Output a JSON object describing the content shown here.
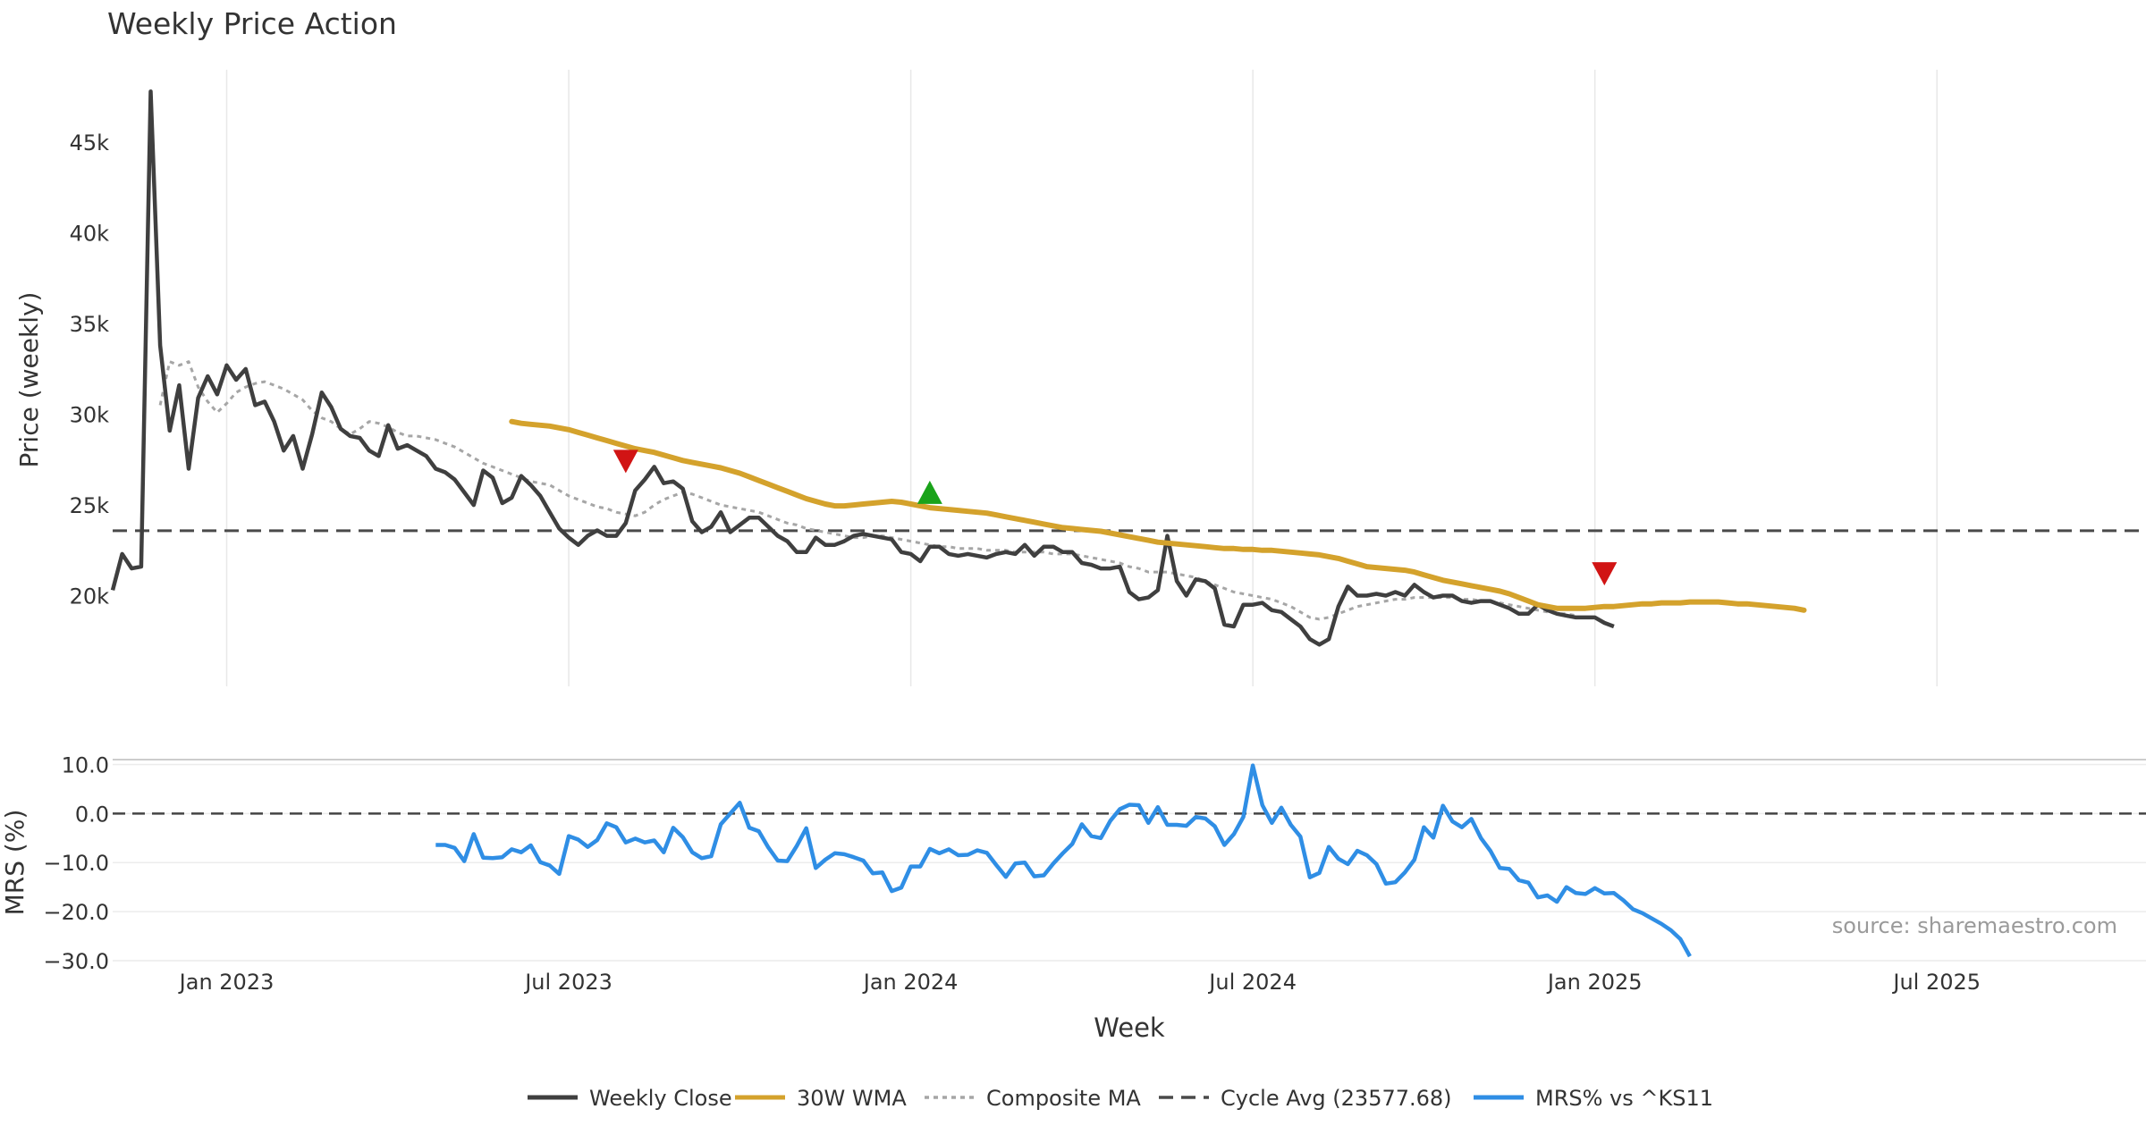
{
  "chart_data": {
    "type": "line",
    "title": "Weekly Price Action",
    "source_note": "source: sharemaestro.com",
    "x_axis_label": "Week",
    "x_ticks": [
      "Jan 2023",
      "Jul 2023",
      "Jan 2024",
      "Jul 2024",
      "Jan 2025",
      "Jul 2025"
    ],
    "x_tick_weeks": [
      12,
      48,
      84,
      120,
      156,
      192
    ],
    "x_range_weeks": [
      0,
      214
    ],
    "colors": {
      "close": "#3f3f3f",
      "wma": "#d4a22c",
      "composite": "#a6a6a6",
      "cycle": "#4a4a4a",
      "mrs": "#2f8ee5",
      "signal_down": "#d11414",
      "signal_up": "#1aa31a",
      "grid": "#e8e8e8",
      "text": "#333333"
    },
    "price_panel": {
      "ylabel": "Price (weekly)",
      "yrange": [
        15000,
        49000
      ],
      "yticks": [
        20000,
        25000,
        30000,
        35000,
        40000,
        45000
      ],
      "ytick_labels": [
        "20k",
        "25k",
        "30k",
        "35k",
        "40k",
        "45k"
      ],
      "cycle_avg": 23577.68,
      "series": {
        "weekly_close": {
          "name": "Weekly Close",
          "start_week": 0,
          "values": [
            20300,
            22300,
            21500,
            21600,
            47800,
            33800,
            29100,
            31600,
            27000,
            30900,
            32100,
            31100,
            32700,
            31900,
            32500,
            30500,
            30700,
            29600,
            28000,
            28800,
            27000,
            28900,
            31200,
            30400,
            29200,
            28800,
            28700,
            28000,
            27700,
            29400,
            28100,
            28300,
            28000,
            27700,
            27000,
            26800,
            26400,
            25700,
            25000,
            26900,
            26500,
            25100,
            25400,
            26600,
            26100,
            25500,
            24600,
            23700,
            23200,
            22800,
            23300,
            23600,
            23300,
            23300,
            24000,
            25800,
            26400,
            27100,
            26200,
            26300,
            25900,
            24100,
            23500,
            23800,
            24600,
            23500,
            23900,
            24300,
            24300,
            23800,
            23300,
            23000,
            22400,
            22400,
            23200,
            22800,
            22800,
            23000,
            23300,
            23400,
            23300,
            23200,
            23100,
            22400,
            22300,
            21900,
            22700,
            22700,
            22300,
            22200,
            22300,
            22200,
            22100,
            22300,
            22400,
            22300,
            22800,
            22200,
            22700,
            22700,
            22400,
            22400,
            21800,
            21700,
            21500,
            21500,
            21600,
            20200,
            19800,
            19900,
            20300,
            23300,
            20800,
            20000,
            20900,
            20800,
            20400,
            18400,
            18300,
            19500,
            19500,
            19600,
            19200,
            19100,
            18700,
            18300,
            17600,
            17300,
            17600,
            19400,
            20500,
            20000,
            20000,
            20100,
            20000,
            20200,
            20000,
            20600,
            20200,
            19900,
            20000,
            20000,
            19700,
            19600,
            19700,
            19700,
            19500,
            19300,
            19000,
            19000,
            19500,
            19200,
            19000,
            18900,
            18800,
            18800,
            18800,
            18500,
            18300
          ]
        },
        "wma_30w": {
          "name": "30W WMA",
          "start_week": 42,
          "values": [
            29600,
            29500,
            29450,
            29400,
            29350,
            29250,
            29150,
            29000,
            28850,
            28700,
            28550,
            28400,
            28250,
            28100,
            28000,
            27900,
            27750,
            27600,
            27450,
            27350,
            27250,
            27150,
            27050,
            26900,
            26750,
            26550,
            26350,
            26150,
            25950,
            25750,
            25550,
            25350,
            25200,
            25050,
            24950,
            24950,
            25000,
            25050,
            25100,
            25150,
            25200,
            25150,
            25050,
            24950,
            24850,
            24800,
            24750,
            24700,
            24650,
            24600,
            24550,
            24450,
            24350,
            24250,
            24150,
            24050,
            23950,
            23850,
            23750,
            23700,
            23650,
            23600,
            23550,
            23450,
            23350,
            23250,
            23150,
            23050,
            22950,
            22900,
            22850,
            22800,
            22750,
            22700,
            22650,
            22600,
            22600,
            22550,
            22550,
            22500,
            22500,
            22450,
            22400,
            22350,
            22300,
            22250,
            22150,
            22050,
            21900,
            21750,
            21600,
            21550,
            21500,
            21450,
            21400,
            21300,
            21150,
            21000,
            20850,
            20750,
            20650,
            20550,
            20450,
            20350,
            20250,
            20100,
            19900,
            19700,
            19500,
            19400,
            19300,
            19300,
            19300,
            19300,
            19350,
            19400,
            19400,
            19450,
            19500,
            19550,
            19550,
            19600,
            19600,
            19600,
            19650,
            19650,
            19650,
            19650,
            19600,
            19550,
            19550,
            19500,
            19450,
            19400,
            19350,
            19300,
            19200
          ]
        },
        "composite_ma": {
          "name": "Composite MA",
          "start_week": 5,
          "values": [
            30500,
            32900,
            32700,
            32900,
            31500,
            30700,
            30100,
            30600,
            31200,
            31500,
            31700,
            31800,
            31600,
            31400,
            31100,
            30800,
            30200,
            29800,
            29600,
            29200,
            28900,
            29200,
            29600,
            29500,
            29300,
            29000,
            28800,
            28800,
            28700,
            28600,
            28400,
            28200,
            27900,
            27600,
            27300,
            27100,
            26900,
            26700,
            26500,
            26300,
            26200,
            26100,
            25800,
            25500,
            25300,
            25100,
            24900,
            24800,
            24600,
            24500,
            24400,
            24600,
            25000,
            25300,
            25500,
            25700,
            25600,
            25400,
            25200,
            25000,
            24900,
            24800,
            24700,
            24600,
            24400,
            24200,
            24000,
            23900,
            23700,
            23600,
            23500,
            23400,
            23300,
            23200,
            23200,
            23300,
            23300,
            23200,
            23100,
            23000,
            22900,
            22800,
            22700,
            22700,
            22600,
            22600,
            22600,
            22500,
            22500,
            22500,
            22400,
            22400,
            22400,
            22400,
            22300,
            22300,
            22300,
            22200,
            22100,
            22000,
            21900,
            21800,
            21600,
            21500,
            21300,
            21300,
            21300,
            21200,
            21100,
            21000,
            20800,
            20600,
            20400,
            20200,
            20100,
            20000,
            19900,
            19800,
            19600,
            19400,
            19100,
            18800,
            18700,
            18800,
            19000,
            19200,
            19400,
            19500,
            19600,
            19700,
            19800,
            19800,
            19900,
            19900,
            19900,
            19900,
            19900,
            19800,
            19800,
            19700,
            19700,
            19600,
            19500,
            19400,
            19300,
            19200,
            19100,
            19000,
            19000,
            18900
          ]
        }
      },
      "signals": [
        {
          "type": "down",
          "week": 54,
          "value": 27400
        },
        {
          "type": "up",
          "week": 86,
          "value": 25700
        },
        {
          "type": "down",
          "week": 157,
          "value": 21200
        }
      ]
    },
    "mrs_panel": {
      "ylabel": "MRS (%)",
      "yrange": [
        -30,
        11
      ],
      "yticks": [
        10,
        0,
        -10,
        -20,
        -30
      ],
      "ytick_labels": [
        "10.0",
        "0.0",
        "−10.0",
        "−20.0",
        "−30.0"
      ],
      "zero_line": 0,
      "series": {
        "mrs": {
          "name": "MRS% vs ^KS11",
          "start_week": 34,
          "values": [
            -6.4,
            -6.4,
            -7.0,
            -9.7,
            -4.2,
            -9.0,
            -9.1,
            -8.9,
            -7.3,
            -7.9,
            -6.5,
            -9.9,
            -10.6,
            -12.3,
            -4.6,
            -5.3,
            -6.8,
            -5.4,
            -2.0,
            -2.8,
            -5.9,
            -5.1,
            -5.9,
            -5.5,
            -7.9,
            -2.9,
            -4.8,
            -7.9,
            -9.1,
            -8.7,
            -2.2,
            0.0,
            2.2,
            -2.9,
            -3.6,
            -6.9,
            -9.6,
            -9.7,
            -6.6,
            -3.0,
            -11.1,
            -9.4,
            -8.1,
            -8.3,
            -8.9,
            -9.6,
            -12.2,
            -12.0,
            -15.8,
            -15.1,
            -10.8,
            -10.8,
            -7.2,
            -8.1,
            -7.3,
            -8.5,
            -8.4,
            -7.5,
            -8.0,
            -10.5,
            -12.9,
            -10.2,
            -10.0,
            -12.8,
            -12.6,
            -10.2,
            -8.1,
            -6.2,
            -2.2,
            -4.6,
            -5.0,
            -1.5,
            0.9,
            1.8,
            1.7,
            -1.9,
            1.3,
            -2.3,
            -2.3,
            -2.5,
            -0.7,
            -1.0,
            -2.6,
            -6.4,
            -4.2,
            -0.7,
            9.8,
            1.7,
            -1.9,
            1.2,
            -2.3,
            -4.7,
            -13.0,
            -12.1,
            -6.8,
            -9.2,
            -10.3,
            -7.6,
            -8.5,
            -10.3,
            -14.3,
            -14.0,
            -12.0,
            -9.4,
            -2.8,
            -4.9,
            1.6,
            -1.6,
            -2.8,
            -1.1,
            -5.0,
            -7.6,
            -11.1,
            -11.3,
            -13.6,
            -14.1,
            -17.1,
            -16.7,
            -18.0,
            -15.0,
            -16.2,
            -16.4,
            -15.2,
            -16.3,
            -16.2,
            -17.7,
            -19.5,
            -20.3,
            -21.4,
            -22.5,
            -23.8,
            -25.6,
            -29.1
          ]
        }
      }
    },
    "legend": [
      {
        "key": "close",
        "label": "Weekly Close",
        "style": "solid"
      },
      {
        "key": "wma",
        "label": "30W WMA",
        "style": "solid"
      },
      {
        "key": "composite",
        "label": "Composite MA",
        "style": "dotted"
      },
      {
        "key": "cycle",
        "label": "Cycle Avg (23577.68)",
        "style": "dashed"
      },
      {
        "key": "mrs",
        "label": "MRS% vs ^KS11",
        "style": "solid"
      }
    ]
  }
}
